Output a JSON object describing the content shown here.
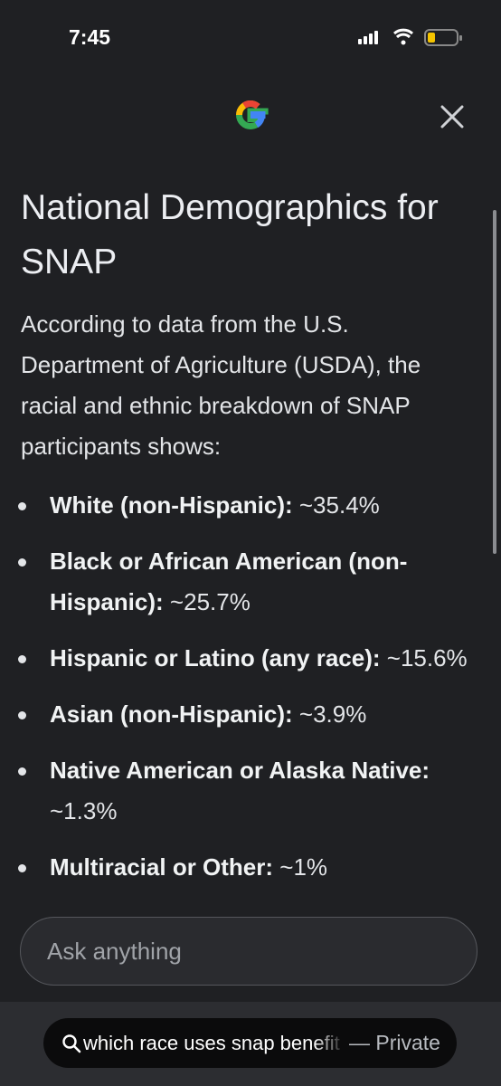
{
  "status_bar": {
    "time": "7:45"
  },
  "content": {
    "title": "National Demographics for SNAP",
    "intro": "According to data from the U.S. Department of Agriculture (USDA), the racial and ethnic breakdown of SNAP participants shows:",
    "items": [
      {
        "label": "White (non-Hispanic):",
        "value": "~35.4%"
      },
      {
        "label": "Black or African American (non-Hispanic):",
        "value": "~25.7%"
      },
      {
        "label": "Hispanic or Latino (any race):",
        "value": "~15.6%"
      },
      {
        "label": "Asian (non-Hispanic):",
        "value": "~3.9%"
      },
      {
        "label": "Native American or Alaska Native:",
        "value": "~1.3%"
      },
      {
        "label": "Multiracial or Other:",
        "value": "~1%"
      }
    ]
  },
  "input": {
    "placeholder": "Ask anything"
  },
  "search_bar": {
    "query": "which race uses snap benefit",
    "mode": "— Private"
  }
}
